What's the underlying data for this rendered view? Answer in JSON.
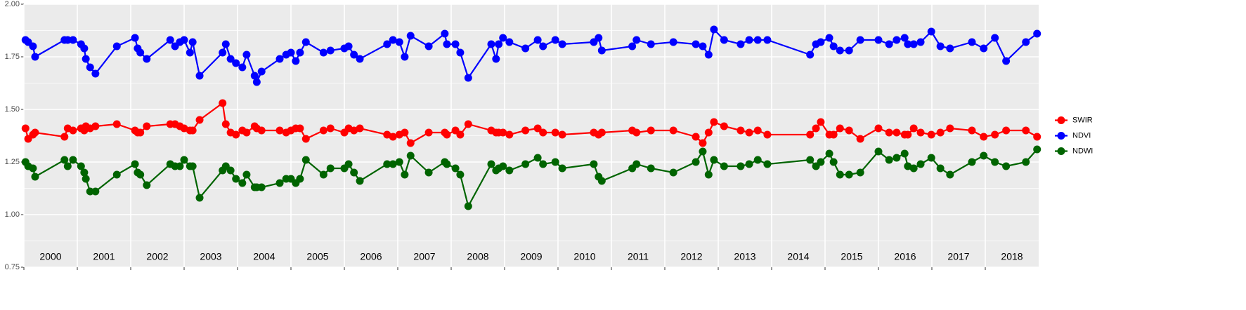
{
  "chart_data": {
    "type": "line",
    "x": [
      2000.03,
      2000.08,
      2000.17,
      2000.21,
      2000.76,
      2000.82,
      2000.92,
      2001.07,
      2001.13,
      2001.16,
      2001.24,
      2001.34,
      2001.74,
      2002.08,
      2002.13,
      2002.18,
      2002.3,
      2002.74,
      2002.83,
      2002.92,
      2003.0,
      2003.11,
      2003.16,
      2003.29,
      2003.72,
      2003.78,
      2003.87,
      2003.97,
      2004.09,
      2004.17,
      2004.32,
      2004.36,
      2004.45,
      2004.79,
      2004.91,
      2005.0,
      2005.09,
      2005.17,
      2005.28,
      2005.61,
      2005.74,
      2006.0,
      2006.08,
      2006.18,
      2006.29,
      2006.8,
      2006.91,
      2007.03,
      2007.13,
      2007.24,
      2007.58,
      2007.88,
      2007.92,
      2008.08,
      2008.17,
      2008.32,
      2008.75,
      2008.84,
      2008.89,
      2008.97,
      2009.09,
      2009.39,
      2009.62,
      2009.72,
      2009.95,
      2010.08,
      2010.67,
      2010.76,
      2010.82,
      2011.39,
      2011.47,
      2011.74,
      2012.16,
      2012.58,
      2012.71,
      2012.82,
      2012.92,
      2013.11,
      2013.42,
      2013.58,
      2013.74,
      2013.92,
      2014.72,
      2014.83,
      2014.92,
      2015.08,
      2015.16,
      2015.28,
      2015.45,
      2015.66,
      2016.0,
      2016.2,
      2016.34,
      2016.49,
      2016.55,
      2016.66,
      2016.79,
      2016.99,
      2017.16,
      2017.34,
      2017.75,
      2017.97,
      2018.18,
      2018.39,
      2018.76,
      2018.97
    ],
    "series": [
      {
        "name": "SWIR",
        "color": "#ff0000",
        "values": [
          1.41,
          1.36,
          1.38,
          1.39,
          1.37,
          1.41,
          1.4,
          1.41,
          1.4,
          1.42,
          1.41,
          1.42,
          1.43,
          1.4,
          1.39,
          1.39,
          1.42,
          1.43,
          1.43,
          1.42,
          1.41,
          1.4,
          1.4,
          1.45,
          1.53,
          1.43,
          1.39,
          1.38,
          1.4,
          1.39,
          1.42,
          1.41,
          1.4,
          1.4,
          1.39,
          1.4,
          1.41,
          1.41,
          1.36,
          1.4,
          1.41,
          1.39,
          1.41,
          1.4,
          1.41,
          1.38,
          1.37,
          1.38,
          1.39,
          1.34,
          1.39,
          1.39,
          1.38,
          1.4,
          1.38,
          1.43,
          1.4,
          1.39,
          1.39,
          1.39,
          1.38,
          1.4,
          1.41,
          1.39,
          1.39,
          1.38,
          1.39,
          1.38,
          1.39,
          1.4,
          1.39,
          1.4,
          1.4,
          1.37,
          1.34,
          1.39,
          1.44,
          1.42,
          1.4,
          1.39,
          1.4,
          1.38,
          1.38,
          1.41,
          1.44,
          1.38,
          1.38,
          1.41,
          1.4,
          1.36,
          1.41,
          1.39,
          1.39,
          1.38,
          1.38,
          1.41,
          1.39,
          1.38,
          1.39,
          1.41,
          1.4,
          1.37,
          1.38,
          1.4,
          1.4,
          1.37
        ]
      },
      {
        "name": "NDVI",
        "color": "#0000ff",
        "values": [
          1.83,
          1.82,
          1.8,
          1.75,
          1.83,
          1.83,
          1.83,
          1.81,
          1.79,
          1.74,
          1.7,
          1.67,
          1.8,
          1.84,
          1.79,
          1.77,
          1.74,
          1.83,
          1.8,
          1.82,
          1.83,
          1.77,
          1.82,
          1.66,
          1.77,
          1.81,
          1.74,
          1.72,
          1.7,
          1.76,
          1.66,
          1.63,
          1.68,
          1.74,
          1.76,
          1.77,
          1.73,
          1.77,
          1.82,
          1.77,
          1.78,
          1.79,
          1.8,
          1.76,
          1.74,
          1.81,
          1.83,
          1.82,
          1.75,
          1.85,
          1.8,
          1.86,
          1.81,
          1.81,
          1.77,
          1.65,
          1.81,
          1.74,
          1.81,
          1.84,
          1.82,
          1.79,
          1.83,
          1.8,
          1.83,
          1.81,
          1.82,
          1.84,
          1.78,
          1.8,
          1.83,
          1.81,
          1.82,
          1.81,
          1.8,
          1.76,
          1.88,
          1.83,
          1.81,
          1.83,
          1.83,
          1.83,
          1.76,
          1.81,
          1.82,
          1.84,
          1.8,
          1.78,
          1.78,
          1.83,
          1.83,
          1.81,
          1.83,
          1.84,
          1.81,
          1.81,
          1.82,
          1.87,
          1.8,
          1.79,
          1.82,
          1.79,
          1.84,
          1.73,
          1.82,
          1.86
        ]
      },
      {
        "name": "NDWI",
        "color": "#006400",
        "values": [
          1.25,
          1.23,
          1.22,
          1.18,
          1.26,
          1.23,
          1.26,
          1.23,
          1.2,
          1.17,
          1.11,
          1.11,
          1.19,
          1.24,
          1.2,
          1.19,
          1.14,
          1.24,
          1.23,
          1.23,
          1.26,
          1.23,
          1.23,
          1.08,
          1.21,
          1.23,
          1.21,
          1.17,
          1.15,
          1.19,
          1.13,
          1.13,
          1.13,
          1.15,
          1.17,
          1.17,
          1.15,
          1.17,
          1.26,
          1.19,
          1.22,
          1.22,
          1.24,
          1.2,
          1.16,
          1.24,
          1.24,
          1.25,
          1.19,
          1.28,
          1.2,
          1.25,
          1.24,
          1.22,
          1.19,
          1.04,
          1.24,
          1.21,
          1.22,
          1.23,
          1.21,
          1.24,
          1.27,
          1.24,
          1.25,
          1.22,
          1.24,
          1.18,
          1.16,
          1.22,
          1.24,
          1.22,
          1.2,
          1.25,
          1.3,
          1.19,
          1.26,
          1.23,
          1.23,
          1.24,
          1.26,
          1.24,
          1.26,
          1.23,
          1.25,
          1.29,
          1.25,
          1.19,
          1.19,
          1.2,
          1.3,
          1.26,
          1.27,
          1.29,
          1.23,
          1.22,
          1.24,
          1.27,
          1.22,
          1.19,
          1.25,
          1.28,
          1.25,
          1.23,
          1.25,
          1.31
        ]
      }
    ],
    "xlim": [
      2000,
      2019
    ],
    "xticks": [
      2000,
      2001,
      2002,
      2003,
      2004,
      2005,
      2006,
      2007,
      2008,
      2009,
      2010,
      2011,
      2012,
      2013,
      2014,
      2015,
      2016,
      2017,
      2018
    ],
    "ylim": [
      0.75,
      2.0
    ],
    "yticks": [
      {
        "value": 0.75,
        "label": "0.75"
      },
      {
        "value": 1.0,
        "label": "1.00"
      },
      {
        "value": 1.25,
        "label": "1.25"
      },
      {
        "value": 1.5,
        "label": "1.50"
      },
      {
        "value": 1.75,
        "label": "1.75"
      },
      {
        "value": 2.0,
        "label": "2.00"
      }
    ],
    "grid": true,
    "legend": "right"
  }
}
